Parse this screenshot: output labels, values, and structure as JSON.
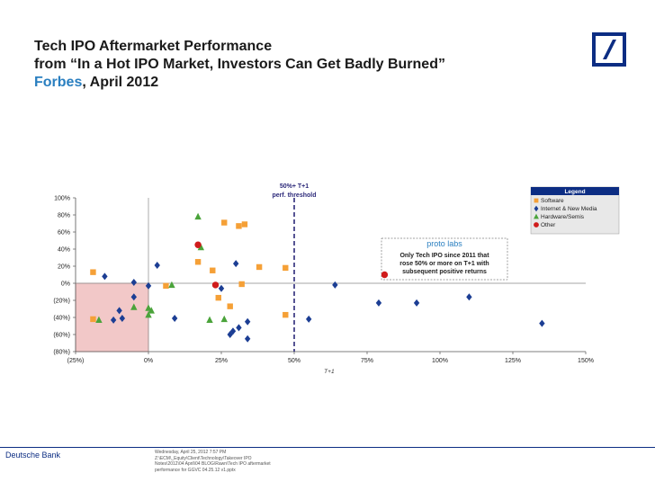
{
  "header": {
    "title_line1": "Tech IPO Aftermarket Performance",
    "title_line2": "from “In a Hot IPO Market, Investors Can Get Badly Burned”",
    "title_line3_source": "Forbes",
    "title_line3_date": ", April 2012"
  },
  "footer": {
    "company": "Deutsche Bank",
    "note_lines": [
      "Wednesday, April 25, 2012 7:57 PM",
      "Z:\\ECM\\_Equity\\Client\\Technology\\Takeover IPO",
      "Notes\\2012\\04 April\\04 BLOG\\Rawn\\Tech IPO aftermarket",
      "performance for GGVC 04.25.12 v1.pptx"
    ]
  },
  "colors": {
    "software": "#f5a037",
    "internet": "#1c3e94",
    "hardware": "#4aa33a",
    "other": "#d01c1c",
    "loss_zone": "#f2c8c8",
    "threshold": "#2d2a7a",
    "brand": "#0c2d83"
  },
  "chart_data": {
    "type": "scatter",
    "xlabel": "T+1",
    "ylabel": "",
    "xlim": [
      -0.25,
      1.5
    ],
    "ylim": [
      -0.8,
      1.0
    ],
    "x_ticks": [
      -0.25,
      0,
      0.25,
      0.5,
      0.75,
      1.0,
      1.25,
      1.5
    ],
    "x_tick_labels": [
      "(25%)",
      "0%",
      "25%",
      "50%",
      "75%",
      "100%",
      "125%",
      "150%"
    ],
    "y_ticks": [
      1.0,
      0.8,
      0.6,
      0.4,
      0.2,
      0,
      -0.2,
      -0.4,
      -0.6,
      -0.8
    ],
    "y_tick_labels": [
      "100%",
      "80%",
      "60%",
      "40%",
      "20%",
      "0%",
      "(20%)",
      "(40%)",
      "(60%)",
      "(80%)"
    ],
    "threshold": {
      "x": 0.5,
      "label_line1": "50%+ T+1",
      "label_line2": "perf. threshold"
    },
    "legend": {
      "title": "Legend",
      "position": "top-right",
      "items": [
        "Software",
        "Internet & New Media",
        "Hardware/Semis",
        "Other"
      ]
    },
    "callout": {
      "brand": "proto labs",
      "text_line1": "Only Tech IPO since 2011 that",
      "text_line2": "rose 50% or more on T+1 with",
      "text_line3": "subsequent positive returns"
    },
    "series": [
      {
        "name": "Software",
        "marker": "square",
        "points": [
          [
            -0.19,
            0.13
          ],
          [
            -0.19,
            -0.42
          ],
          [
            0.06,
            -0.03
          ],
          [
            0.17,
            0.25
          ],
          [
            0.26,
            0.71
          ],
          [
            0.22,
            0.15
          ],
          [
            0.31,
            0.67
          ],
          [
            0.33,
            0.69
          ],
          [
            0.24,
            -0.17
          ],
          [
            0.32,
            -0.01
          ],
          [
            0.28,
            -0.27
          ],
          [
            0.38,
            0.19
          ],
          [
            0.47,
            0.18
          ],
          [
            0.47,
            -0.37
          ]
        ]
      },
      {
        "name": "Internet & New Media",
        "marker": "diamond",
        "points": [
          [
            -0.15,
            0.08
          ],
          [
            -0.05,
            0.01
          ],
          [
            -0.05,
            -0.16
          ],
          [
            -0.1,
            -0.32
          ],
          [
            -0.12,
            -0.43
          ],
          [
            -0.09,
            -0.41
          ],
          [
            0.0,
            -0.03
          ],
          [
            0.03,
            0.21
          ],
          [
            0.09,
            -0.41
          ],
          [
            0.25,
            -0.06
          ],
          [
            0.3,
            0.23
          ],
          [
            0.29,
            -0.56
          ],
          [
            0.31,
            -0.52
          ],
          [
            0.28,
            -0.6
          ],
          [
            0.34,
            -0.45
          ],
          [
            0.34,
            -0.65
          ],
          [
            0.55,
            -0.42
          ],
          [
            0.64,
            -0.02
          ],
          [
            0.79,
            -0.23
          ],
          [
            0.92,
            -0.23
          ],
          [
            1.1,
            -0.16
          ],
          [
            1.35,
            -0.47
          ]
        ]
      },
      {
        "name": "Hardware/Semis",
        "marker": "triangle",
        "points": [
          [
            -0.17,
            -0.43
          ],
          [
            -0.05,
            -0.28
          ],
          [
            0.0,
            -0.29
          ],
          [
            0.01,
            -0.32
          ],
          [
            0.0,
            -0.37
          ],
          [
            0.08,
            -0.02
          ],
          [
            0.17,
            0.78
          ],
          [
            0.18,
            0.42
          ],
          [
            0.21,
            -0.43
          ],
          [
            0.26,
            -0.42
          ]
        ]
      },
      {
        "name": "Other",
        "marker": "circle",
        "points": [
          [
            0.17,
            0.45
          ],
          [
            0.23,
            -0.02
          ],
          [
            0.81,
            0.1
          ]
        ]
      }
    ]
  }
}
